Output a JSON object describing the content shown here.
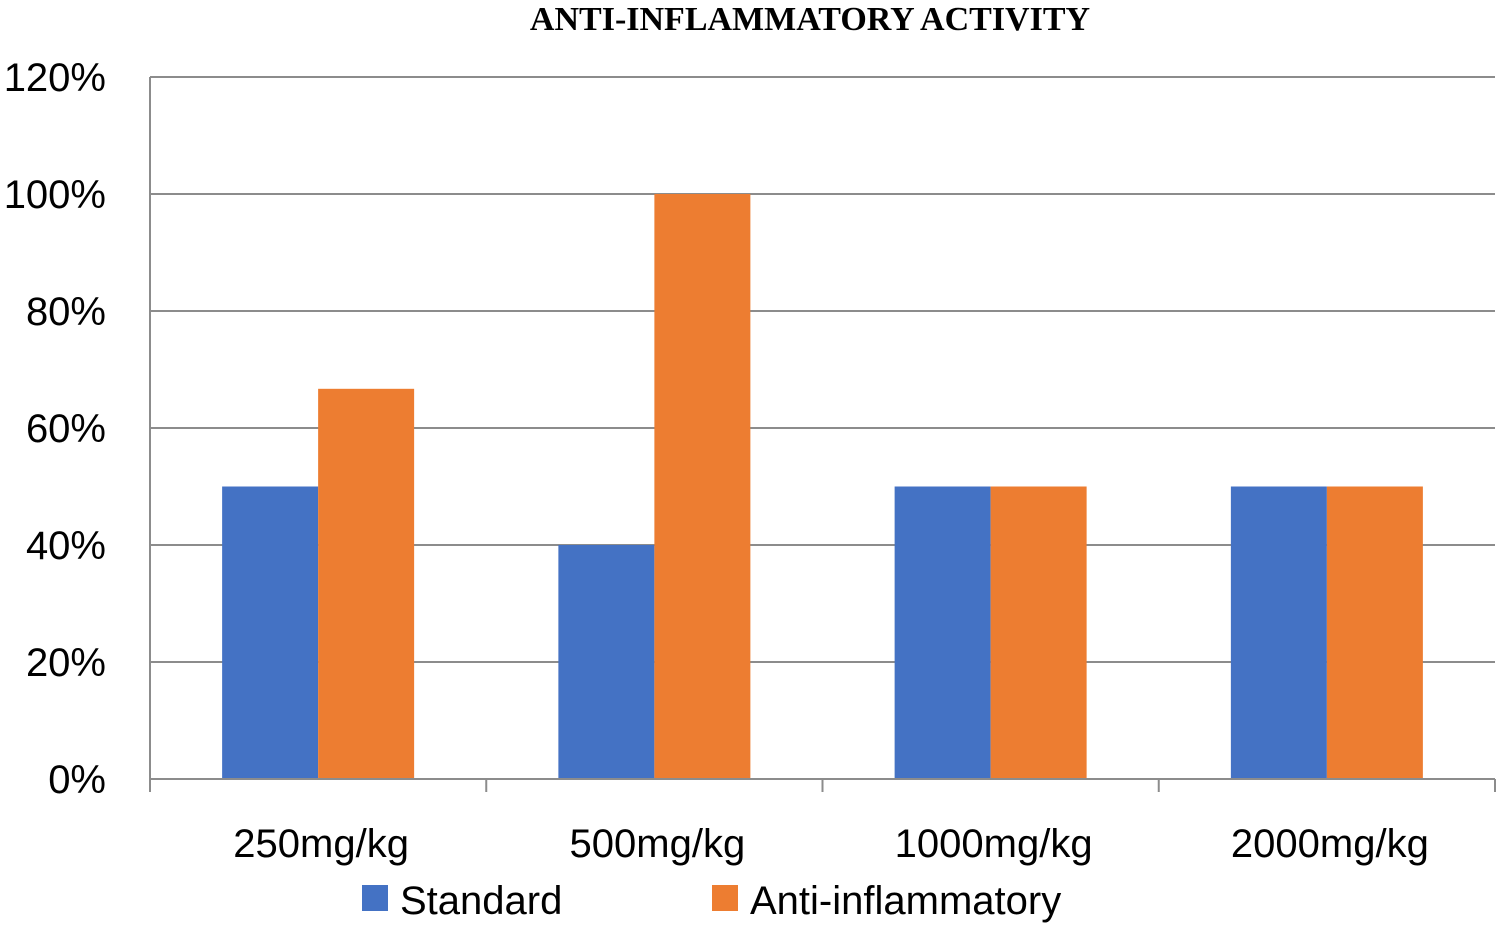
{
  "chart_data": {
    "type": "bar",
    "title": "ANTI-INFLAMMATORY ACTIVITY",
    "categories": [
      "250mg/kg",
      "500mg/kg",
      "1000mg/kg",
      "2000mg/kg"
    ],
    "series": [
      {
        "name": "Standard",
        "color": "#4472C4",
        "values": [
          50,
          40,
          50,
          50
        ]
      },
      {
        "name": "Anti-inflammatory",
        "color": "#ED7D31",
        "values": [
          66.7,
          100,
          50,
          50
        ]
      }
    ],
    "ylim": [
      0,
      120
    ],
    "yticks": [
      0,
      20,
      40,
      60,
      80,
      100,
      120
    ],
    "ytick_labels": [
      "0%",
      "20%",
      "40%",
      "60%",
      "80%",
      "100%",
      "120%"
    ],
    "xlabel": "",
    "ylabel": "",
    "grid": true,
    "legend": "bottom-center"
  }
}
